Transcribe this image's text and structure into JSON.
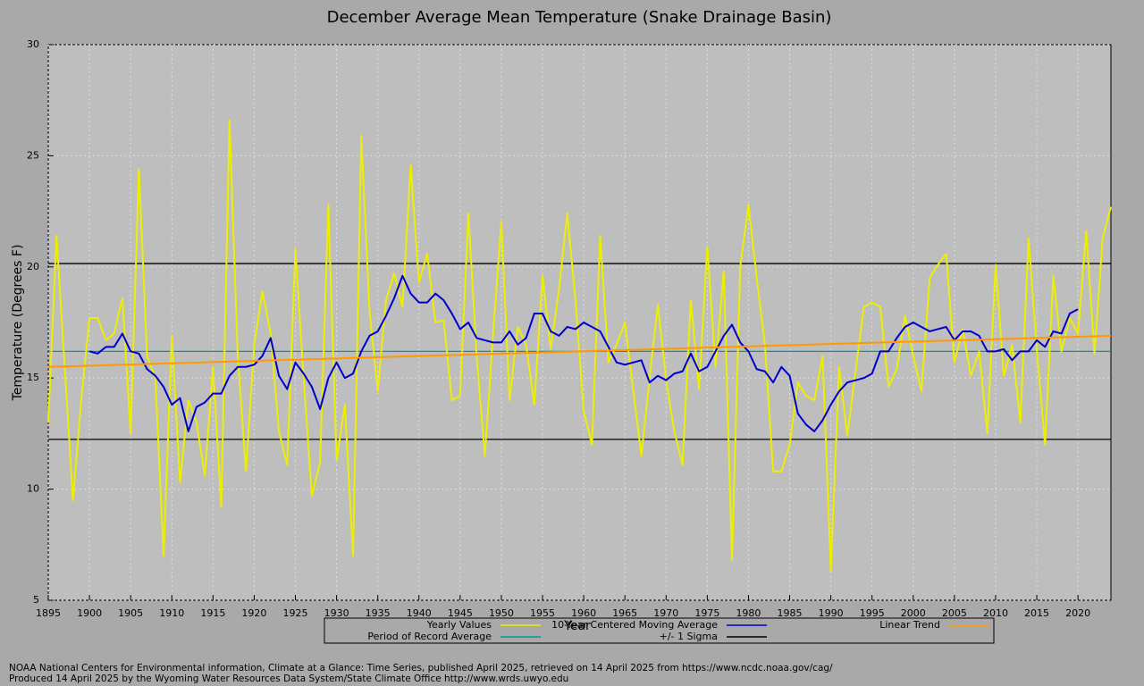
{
  "chart_data": {
    "type": "line",
    "title": "December Average Mean Temperature (Snake Drainage Basin)",
    "x_label": "Year",
    "y_label": "Temperature (Degrees F)",
    "xlim": [
      1895,
      2024
    ],
    "ylim": [
      5,
      30
    ],
    "xticks": [
      1895,
      1900,
      1905,
      1910,
      1915,
      1920,
      1925,
      1930,
      1935,
      1940,
      1945,
      1950,
      1955,
      1960,
      1965,
      1970,
      1975,
      1980,
      1985,
      1990,
      1995,
      2000,
      2005,
      2010,
      2015,
      2020
    ],
    "yticks": [
      5,
      10,
      15,
      20,
      25,
      30
    ],
    "grid": true,
    "x": [
      1895,
      1896,
      1897,
      1898,
      1899,
      1900,
      1901,
      1902,
      1903,
      1904,
      1905,
      1906,
      1907,
      1908,
      1909,
      1910,
      1911,
      1912,
      1913,
      1914,
      1915,
      1916,
      1917,
      1918,
      1919,
      1920,
      1921,
      1922,
      1923,
      1924,
      1925,
      1926,
      1927,
      1928,
      1929,
      1930,
      1931,
      1932,
      1933,
      1934,
      1935,
      1936,
      1937,
      1938,
      1939,
      1940,
      1941,
      1942,
      1943,
      1944,
      1945,
      1946,
      1947,
      1948,
      1949,
      1950,
      1951,
      1952,
      1953,
      1954,
      1955,
      1956,
      1957,
      1958,
      1959,
      1960,
      1961,
      1962,
      1963,
      1964,
      1965,
      1966,
      1967,
      1968,
      1969,
      1970,
      1971,
      1972,
      1973,
      1974,
      1975,
      1976,
      1977,
      1978,
      1979,
      1980,
      1981,
      1982,
      1983,
      1984,
      1985,
      1986,
      1987,
      1988,
      1989,
      1990,
      1991,
      1992,
      1993,
      1994,
      1995,
      1996,
      1997,
      1998,
      1999,
      2000,
      2001,
      2002,
      2003,
      2004,
      2005,
      2006,
      2007,
      2008,
      2009,
      2010,
      2011,
      2012,
      2013,
      2014,
      2015,
      2016,
      2017,
      2018,
      2019,
      2020,
      2021,
      2022,
      2023,
      2024
    ],
    "series": [
      {
        "name": "Yearly Values",
        "color": "#eeee00",
        "width": 2,
        "values": [
          13.0,
          21.4,
          15.5,
          9.5,
          14.0,
          17.7,
          17.7,
          16.7,
          17.0,
          18.6,
          12.5,
          24.4,
          16.0,
          15.0,
          7.0,
          16.9,
          10.3,
          14.0,
          13.0,
          10.6,
          15.5,
          9.2,
          26.6,
          16.0,
          10.8,
          16.5,
          18.9,
          17.0,
          12.6,
          11.1,
          20.8,
          15.0,
          9.7,
          11.2,
          22.8,
          11.3,
          13.8,
          7.0,
          25.9,
          18.0,
          14.4,
          18.5,
          19.7,
          18.2,
          24.6,
          19.3,
          20.6,
          17.5,
          17.6,
          14.0,
          14.2,
          22.4,
          16.0,
          11.5,
          17.0,
          22.0,
          14.0,
          17.3,
          16.5,
          13.8,
          19.6,
          16.3,
          19.0,
          22.4,
          18.5,
          13.5,
          12.0,
          21.4,
          15.7,
          16.5,
          17.5,
          14.5,
          11.5,
          15.0,
          18.3,
          14.9,
          12.6,
          11.1,
          18.5,
          14.5,
          20.9,
          15.5,
          19.8,
          6.8,
          20.0,
          22.8,
          19.5,
          16.5,
          10.8,
          10.8,
          12.0,
          14.8,
          14.2,
          14.0,
          16.0,
          6.3,
          15.5,
          12.4,
          15.3,
          18.2,
          18.4,
          18.2,
          14.6,
          15.4,
          17.8,
          16.0,
          14.4,
          19.5,
          20.1,
          20.6,
          15.7,
          17.2,
          15.1,
          16.2,
          12.5,
          20.1,
          15.1,
          16.5,
          13.0,
          21.3,
          16.3,
          12.0,
          19.6,
          16.2,
          17.7,
          17.0,
          21.6,
          16.1,
          21.3,
          22.7
        ]
      },
      {
        "name": "10-Year Centered Moving Average",
        "color": "#0000cc",
        "width": 2,
        "values": [
          null,
          null,
          null,
          null,
          null,
          16.2,
          16.1,
          16.4,
          16.4,
          17.0,
          16.2,
          16.1,
          15.4,
          15.1,
          14.6,
          13.8,
          14.1,
          12.6,
          13.7,
          13.9,
          14.3,
          14.3,
          15.1,
          15.5,
          15.5,
          15.6,
          16.0,
          16.8,
          15.1,
          14.5,
          15.7,
          15.2,
          14.6,
          13.6,
          15.0,
          15.7,
          15.0,
          15.2,
          16.2,
          16.9,
          17.1,
          17.8,
          18.6,
          19.6,
          18.8,
          18.4,
          18.4,
          18.8,
          18.5,
          17.9,
          17.2,
          17.5,
          16.8,
          16.7,
          16.6,
          16.6,
          17.1,
          16.5,
          16.8,
          17.9,
          17.9,
          17.1,
          16.9,
          17.3,
          17.2,
          17.5,
          17.3,
          17.1,
          16.4,
          15.7,
          15.6,
          15.7,
          15.8,
          14.8,
          15.1,
          14.9,
          15.2,
          15.3,
          16.1,
          15.3,
          15.5,
          16.2,
          16.9,
          17.4,
          16.6,
          16.2,
          15.4,
          15.3,
          14.8,
          15.5,
          15.1,
          13.4,
          12.9,
          12.6,
          13.1,
          13.8,
          14.4,
          14.8,
          14.9,
          15.0,
          15.2,
          16.2,
          16.2,
          16.8,
          17.3,
          17.5,
          17.3,
          17.1,
          17.2,
          17.3,
          16.7,
          17.1,
          17.1,
          16.9,
          16.2,
          16.2,
          16.3,
          15.8,
          16.2,
          16.2,
          16.7,
          16.4,
          17.1,
          17.0,
          17.9,
          18.1,
          null,
          null,
          null,
          null
        ]
      },
      {
        "name": "Linear Trend",
        "color": "#ff9900",
        "width": 2,
        "x": [
          1895,
          2024
        ],
        "values": [
          15.5,
          16.9
        ]
      }
    ],
    "reference_lines": [
      {
        "name": "Period of Record Average",
        "color": "#009999",
        "values": [
          16.2
        ]
      },
      {
        "name": "+/- 1 Sigma",
        "color": "#000000",
        "values": [
          12.24,
          20.15
        ]
      }
    ],
    "notes": [
      "NOAA National Centers for Environmental information, Climate at a Glance: Time Series, published April 2025, retrieved on 14 April 2025 from https://www.ncdc.noaa.gov/cag/",
      "Produced 14 April 2025 by the Wyoming Water Resources Data System/State Climate Office http://www.wrds.uwyo.edu"
    ]
  }
}
